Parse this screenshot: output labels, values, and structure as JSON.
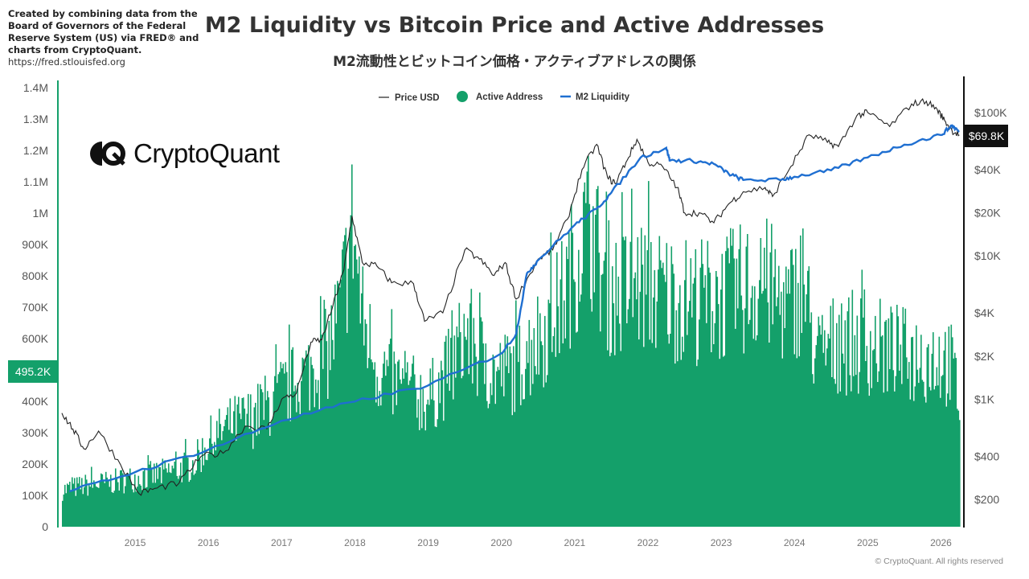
{
  "credit": {
    "text": "Created by combining data from the Board of Governors of the Federal Reserve System (US) via FRED® and charts from CryptoQuant.",
    "url": "https://fred.stlouisfed.org"
  },
  "logo": {
    "text": "CryptoQuant"
  },
  "copyright": "© CryptoQuant. All rights reserved",
  "colors": {
    "active_address": "#14a06a",
    "price": "#222222",
    "m2": "#1f6fd1",
    "left_axis": "#14a06a",
    "right_axis": "#111111"
  },
  "chart_data": {
    "type": "line",
    "title": "M2 Liquidity vs Bitcoin Price and Active Addresses",
    "subtitle": "M2流動性とビットコイン価格・アクティブアドレスの関係",
    "legend": {
      "position": "top-center",
      "entries": [
        "Price USD",
        "Active Address",
        "M2 Liquidity"
      ]
    },
    "x_ticks": [
      "2015",
      "2016",
      "2017",
      "2018",
      "2019",
      "2020",
      "2021",
      "2022",
      "2023",
      "2024",
      "2025",
      "2026"
    ],
    "xlim": [
      2014.0,
      2026.28
    ],
    "left_axis": {
      "scale": "linear",
      "ylim": [
        0,
        1420000
      ],
      "ticks": [
        {
          "v": 0,
          "label": "0"
        },
        {
          "v": 100000,
          "label": "100K"
        },
        {
          "v": 200000,
          "label": "200K"
        },
        {
          "v": 300000,
          "label": "300K"
        },
        {
          "v": 400000,
          "label": "400K"
        },
        {
          "v": 600000,
          "label": "600K"
        },
        {
          "v": 700000,
          "label": "700K"
        },
        {
          "v": 800000,
          "label": "800K"
        },
        {
          "v": 900000,
          "label": "900K"
        },
        {
          "v": 1000000,
          "label": "1M"
        },
        {
          "v": 1100000,
          "label": "1.1M"
        },
        {
          "v": 1200000,
          "label": "1.2M"
        },
        {
          "v": 1300000,
          "label": "1.3M"
        },
        {
          "v": 1400000,
          "label": "1.4M"
        }
      ],
      "current_label": "495.2K",
      "current_value": 495200
    },
    "right_axis": {
      "scale": "log",
      "ylim": [
        150,
        180000
      ],
      "ticks": [
        {
          "v": 200,
          "label": "$200"
        },
        {
          "v": 400,
          "label": "$400"
        },
        {
          "v": 1000,
          "label": "$1K"
        },
        {
          "v": 2000,
          "label": "$2K"
        },
        {
          "v": 4000,
          "label": "$4K"
        },
        {
          "v": 10000,
          "label": "$10K"
        },
        {
          "v": 20000,
          "label": "$20K"
        },
        {
          "v": 40000,
          "label": "$40K"
        },
        {
          "v": 100000,
          "label": "$100K"
        }
      ],
      "current_label": "$69.8K",
      "current_value": 69800
    },
    "series": [
      {
        "name": "Active Address",
        "type": "area",
        "axis": "left",
        "points": [
          [
            2014.0,
            150000
          ],
          [
            2014.3,
            170000
          ],
          [
            2014.6,
            180000
          ],
          [
            2015.0,
            200000
          ],
          [
            2015.4,
            220000
          ],
          [
            2015.8,
            260000
          ],
          [
            2016.0,
            350000
          ],
          [
            2016.3,
            420000
          ],
          [
            2016.6,
            450000
          ],
          [
            2017.0,
            550000
          ],
          [
            2017.3,
            620000
          ],
          [
            2017.6,
            700000
          ],
          [
            2017.8,
            900000
          ],
          [
            2017.96,
            1250000
          ],
          [
            2018.1,
            850000
          ],
          [
            2018.3,
            650000
          ],
          [
            2018.6,
            580000
          ],
          [
            2019.0,
            520000
          ],
          [
            2019.3,
            650000
          ],
          [
            2019.5,
            800000
          ],
          [
            2019.7,
            700000
          ],
          [
            2019.9,
            620000
          ],
          [
            2020.2,
            650000
          ],
          [
            2020.5,
            780000
          ],
          [
            2020.7,
            850000
          ],
          [
            2020.9,
            1000000
          ],
          [
            2021.05,
            1150000
          ],
          [
            2021.2,
            1250000
          ],
          [
            2021.4,
            1000000
          ],
          [
            2021.6,
            950000
          ],
          [
            2021.8,
            1000000
          ],
          [
            2022.0,
            980000
          ],
          [
            2022.3,
            950000
          ],
          [
            2022.6,
            930000
          ],
          [
            2023.0,
            940000
          ],
          [
            2023.3,
            980000
          ],
          [
            2023.6,
            1000000
          ],
          [
            2023.9,
            900000
          ],
          [
            2024.1,
            1000000
          ],
          [
            2024.3,
            700000
          ],
          [
            2024.6,
            760000
          ],
          [
            2025.0,
            750000
          ],
          [
            2025.3,
            720000
          ],
          [
            2025.6,
            700000
          ],
          [
            2026.0,
            700000
          ],
          [
            2026.15,
            650000
          ],
          [
            2026.25,
            495200
          ]
        ]
      },
      {
        "name": "Price USD",
        "type": "line",
        "axis": "right",
        "points": [
          [
            2014.0,
            800
          ],
          [
            2014.15,
            620
          ],
          [
            2014.3,
            450
          ],
          [
            2014.5,
            600
          ],
          [
            2014.8,
            350
          ],
          [
            2015.05,
            220
          ],
          [
            2015.3,
            240
          ],
          [
            2015.6,
            260
          ],
          [
            2015.9,
            400
          ],
          [
            2016.2,
            420
          ],
          [
            2016.5,
            650
          ],
          [
            2016.8,
            620
          ],
          [
            2017.0,
            1000
          ],
          [
            2017.2,
            1100
          ],
          [
            2017.4,
            2500
          ],
          [
            2017.55,
            2600
          ],
          [
            2017.7,
            4500
          ],
          [
            2017.85,
            8000
          ],
          [
            2017.96,
            19000
          ],
          [
            2018.1,
            9000
          ],
          [
            2018.3,
            8500
          ],
          [
            2018.5,
            6500
          ],
          [
            2018.8,
            6400
          ],
          [
            2018.95,
            3500
          ],
          [
            2019.2,
            4000
          ],
          [
            2019.5,
            11000
          ],
          [
            2019.7,
            9500
          ],
          [
            2019.9,
            7300
          ],
          [
            2020.05,
            9000
          ],
          [
            2020.2,
            5000
          ],
          [
            2020.5,
            9500
          ],
          [
            2020.7,
            11000
          ],
          [
            2020.9,
            18000
          ],
          [
            2021.1,
            40000
          ],
          [
            2021.3,
            60000
          ],
          [
            2021.45,
            35000
          ],
          [
            2021.55,
            32000
          ],
          [
            2021.7,
            45000
          ],
          [
            2021.85,
            65000
          ],
          [
            2022.0,
            45000
          ],
          [
            2022.2,
            42000
          ],
          [
            2022.4,
            30000
          ],
          [
            2022.5,
            20000
          ],
          [
            2022.7,
            20000
          ],
          [
            2022.9,
            17000
          ],
          [
            2023.1,
            23000
          ],
          [
            2023.3,
            28000
          ],
          [
            2023.6,
            30000
          ],
          [
            2023.7,
            26000
          ],
          [
            2023.95,
            42000
          ],
          [
            2024.2,
            70000
          ],
          [
            2024.45,
            62000
          ],
          [
            2024.6,
            58000
          ],
          [
            2024.85,
            95000
          ],
          [
            2025.0,
            100000
          ],
          [
            2025.3,
            80000
          ],
          [
            2025.6,
            115000
          ],
          [
            2025.8,
            120000
          ],
          [
            2025.95,
            105000
          ],
          [
            2026.05,
            88000
          ],
          [
            2026.15,
            75000
          ],
          [
            2026.25,
            69800
          ]
        ]
      },
      {
        "name": "M2 Liquidity",
        "type": "line",
        "axis": "hidden",
        "unit": "USD trillions",
        "ylim": [
          10,
          23.9
        ],
        "points": [
          [
            2014.1,
            11.1
          ],
          [
            2015.0,
            11.7
          ],
          [
            2016.0,
            12.4
          ],
          [
            2017.0,
            13.3
          ],
          [
            2018.0,
            13.9
          ],
          [
            2019.0,
            14.4
          ],
          [
            2020.0,
            15.4
          ],
          [
            2020.2,
            16.0
          ],
          [
            2020.35,
            17.9
          ],
          [
            2020.5,
            18.3
          ],
          [
            2021.0,
            19.4
          ],
          [
            2021.3,
            19.9
          ],
          [
            2021.5,
            20.4
          ],
          [
            2021.9,
            21.5
          ],
          [
            2022.25,
            21.8
          ],
          [
            2022.3,
            21.4
          ],
          [
            2022.6,
            21.4
          ],
          [
            2022.9,
            21.3
          ],
          [
            2023.1,
            21.0
          ],
          [
            2023.3,
            20.8
          ],
          [
            2023.8,
            20.8
          ],
          [
            2024.0,
            20.9
          ],
          [
            2024.5,
            21.1
          ],
          [
            2025.0,
            21.5
          ],
          [
            2025.5,
            21.9
          ],
          [
            2026.0,
            22.2
          ],
          [
            2026.15,
            22.5
          ],
          [
            2026.25,
            22.3
          ]
        ]
      }
    ]
  }
}
